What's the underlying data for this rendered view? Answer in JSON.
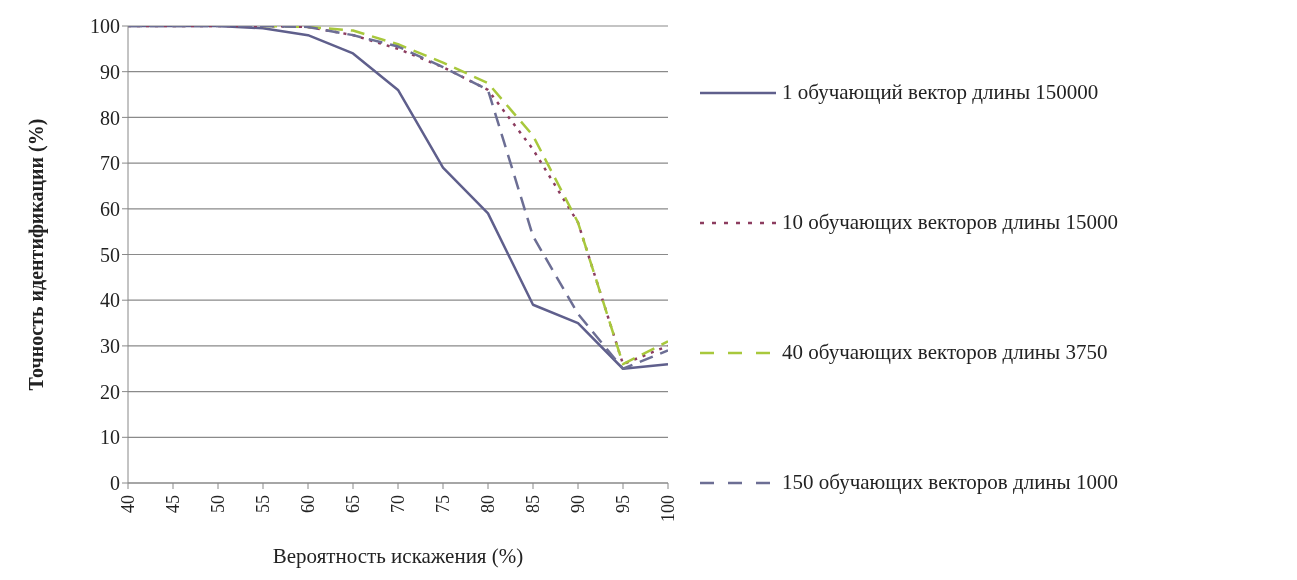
{
  "chart_data": {
    "type": "line",
    "xlabel": "Вероятность искажения (%)",
    "ylabel": "Точность идентификации (%)",
    "x": [
      40,
      45,
      50,
      55,
      60,
      65,
      70,
      75,
      80,
      85,
      90,
      95,
      100
    ],
    "series": [
      {
        "name": "1 обучающий вектор длины 150000",
        "color": "#5f5f8c",
        "line_style": "solid",
        "values": [
          100,
          100,
          100,
          99.5,
          98,
          94,
          86,
          69,
          59,
          39,
          35,
          25,
          26
        ]
      },
      {
        "name": "10 обучающих векторов длины 15000",
        "color": "#8c3c5f",
        "line_style": "dotted",
        "values": [
          100,
          100,
          100,
          100,
          99.8,
          98,
          95,
          91,
          86,
          73,
          57,
          26,
          30
        ]
      },
      {
        "name": "40 обучающих векторов длины 3750",
        "color": "#a8c83c",
        "line_style": "dashed",
        "values": [
          null,
          null,
          null,
          100,
          99.8,
          99,
          96,
          92,
          87.5,
          76,
          57,
          26,
          31
        ]
      },
      {
        "name": "150 обучающих векторов длины 1000",
        "color": "#6c6e94",
        "line_style": "dashed",
        "values": [
          100,
          100,
          100,
          100,
          99.8,
          98,
          95.5,
          91,
          86,
          54,
          37,
          25,
          29
        ]
      }
    ],
    "xlim": [
      40,
      100
    ],
    "xticks": [
      40,
      45,
      50,
      55,
      60,
      65,
      70,
      75,
      80,
      85,
      90,
      95,
      100
    ],
    "ylim": [
      0,
      100
    ],
    "yticks": [
      0,
      10,
      20,
      30,
      40,
      50,
      60,
      70,
      80,
      90,
      100
    ],
    "grid": "y",
    "legend": "right",
    "marker": "none"
  }
}
